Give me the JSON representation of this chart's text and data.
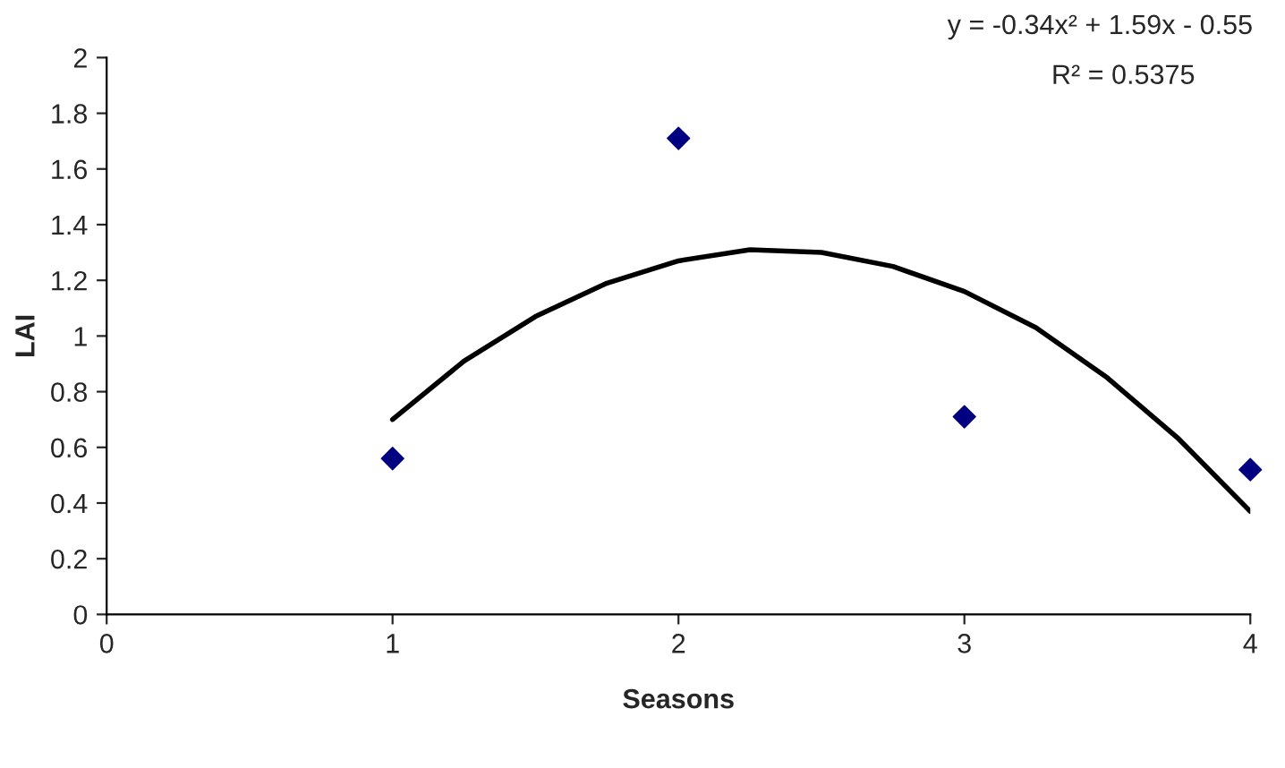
{
  "chart_data": {
    "type": "scatter",
    "xlabel": "Seasons",
    "ylabel": "LAI",
    "annotations": [
      "y = -0.34x² + 1.59x - 0.55",
      "R² = 0.5375"
    ],
    "series": [
      {
        "color": "#000080",
        "x": [
          1,
          2,
          3,
          4
        ],
        "values": [
          0.56,
          1.71,
          0.71,
          0.52
        ]
      },
      {
        "type": "line",
        "color": "#000000",
        "marker": "none",
        "line_style": "solid",
        "x": [
          1,
          1.25,
          1.5,
          1.75,
          2,
          2.25,
          2.5,
          2.75,
          3,
          3.25,
          3.5,
          3.75,
          4
        ],
        "values": [
          0.7,
          0.91,
          1.07,
          1.19,
          1.27,
          1.31,
          1.3,
          1.25,
          1.16,
          1.03,
          0.85,
          0.63,
          0.37
        ]
      }
    ],
    "marker": "diamond",
    "xlim": [
      0,
      4
    ],
    "xticks": [
      0,
      1,
      2,
      3,
      4
    ],
    "ylim": [
      0,
      2
    ],
    "yticks": [
      0,
      {
        "value": 0.2,
        "label": "0.2"
      },
      {
        "value": 0.4,
        "label": "0.4"
      },
      {
        "value": 0.6,
        "label": "0.6"
      },
      {
        "value": 0.8,
        "label": "0.8"
      },
      1,
      {
        "value": 1.2,
        "label": "1.2"
      },
      {
        "value": 1.4,
        "label": "1.4"
      },
      {
        "value": 1.6,
        "label": "1.6"
      },
      {
        "value": 1.8,
        "label": "1.8"
      },
      2
    ],
    "grid": false,
    "legend": false
  }
}
